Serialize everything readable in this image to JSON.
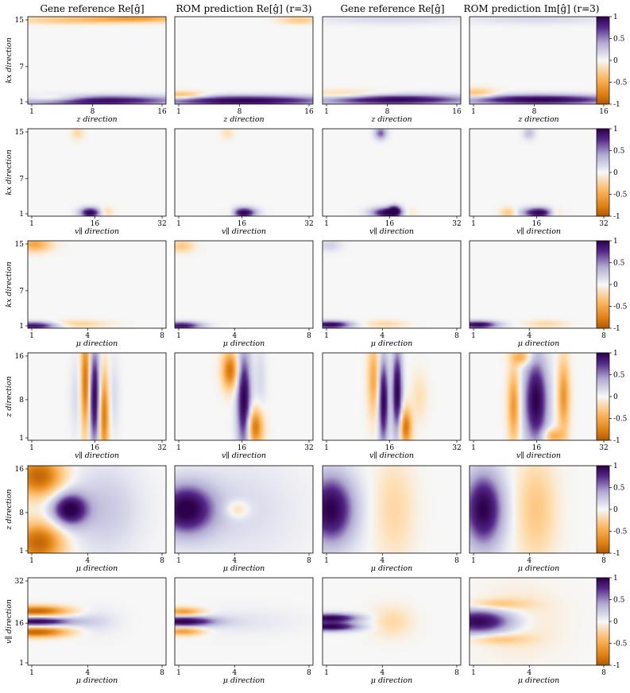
{
  "columns": [
    "Gene reference Re[ĝ]",
    "ROM prediction Re[ĝ] (r=3)",
    "Gene reference Re[ĝ]",
    "ROM prediction Im[ĝ] (r=3)"
  ],
  "colorbar": {
    "ticks": [
      "1",
      "0.5",
      "0",
      "-0.5",
      "-1"
    ],
    "colormap": "PuOr",
    "min": -1,
    "max": 1
  },
  "colors": {
    "positive": "#3b0b70",
    "neutral": "#f7f7f7",
    "negative": "#b35806"
  },
  "chart_data": {
    "type": "heatmap",
    "vmin": -1,
    "vmax": 1,
    "rows": [
      {
        "xlabel": "z direction",
        "ylabel": "kx direction",
        "xticks": [
          "1",
          "8",
          "16"
        ],
        "yticks": [
          "15",
          "7",
          "1"
        ],
        "xrange": [
          1,
          16
        ],
        "yrange": [
          1,
          15
        ],
        "panels": [
          {
            "blobs": [
              [
                0.45,
                0.96,
                0.45,
                0.04,
                1.0
              ],
              [
                0.18,
                0.94,
                0.18,
                0.03,
                -0.6
              ],
              [
                0.8,
                0.02,
                0.25,
                0.03,
                -0.5
              ],
              [
                0.3,
                0.04,
                0.3,
                0.03,
                -0.3
              ]
            ]
          },
          {
            "blobs": [
              [
                0.5,
                0.96,
                0.45,
                0.04,
                1.0
              ],
              [
                0.05,
                0.9,
                0.12,
                0.03,
                -0.5
              ],
              [
                0.9,
                0.04,
                0.1,
                0.03,
                -0.3
              ]
            ]
          },
          {
            "blobs": [
              [
                0.5,
                0.95,
                0.4,
                0.04,
                1.0
              ],
              [
                0.15,
                0.9,
                0.2,
                0.04,
                -0.3
              ],
              [
                0.5,
                0.03,
                0.4,
                0.04,
                0.15
              ]
            ]
          },
          {
            "blobs": [
              [
                0.5,
                0.95,
                0.4,
                0.04,
                1.0
              ],
              [
                0.05,
                0.88,
                0.1,
                0.04,
                -0.4
              ],
              [
                0.5,
                0.03,
                0.4,
                0.04,
                0.15
              ]
            ]
          }
        ]
      },
      {
        "xlabel": "v∥ direction",
        "ylabel": "kx direction",
        "xticks": [
          "1",
          "16",
          "32"
        ],
        "yticks": [
          "15",
          "7",
          "1"
        ],
        "xrange": [
          1,
          32
        ],
        "yrange": [
          1,
          15
        ],
        "panels": [
          {
            "blobs": [
              [
                0.45,
                0.96,
                0.05,
                0.04,
                1.0
              ],
              [
                0.36,
                0.05,
                0.03,
                0.05,
                -0.2
              ],
              [
                0.57,
                0.95,
                0.03,
                0.04,
                -0.2
              ]
            ]
          },
          {
            "blobs": [
              [
                0.5,
                0.96,
                0.06,
                0.04,
                1.0
              ],
              [
                0.4,
                0.96,
                0.03,
                0.04,
                -0.2
              ],
              [
                0.38,
                0.05,
                0.03,
                0.05,
                -0.15
              ]
            ]
          },
          {
            "blobs": [
              [
                0.47,
                0.96,
                0.08,
                0.04,
                1.0
              ],
              [
                0.52,
                0.93,
                0.03,
                0.04,
                0.7
              ],
              [
                0.42,
                0.05,
                0.03,
                0.05,
                0.6
              ],
              [
                0.62,
                0.96,
                0.04,
                0.04,
                -0.2
              ]
            ]
          },
          {
            "blobs": [
              [
                0.5,
                0.96,
                0.08,
                0.04,
                1.0
              ],
              [
                0.28,
                0.96,
                0.04,
                0.04,
                -0.3
              ],
              [
                0.62,
                0.96,
                0.04,
                0.04,
                -0.3
              ],
              [
                0.43,
                0.05,
                0.03,
                0.05,
                0.3
              ]
            ]
          }
        ]
      },
      {
        "xlabel": "μ direction",
        "ylabel": "kx direction",
        "xticks": [
          "1",
          "4",
          "8"
        ],
        "yticks": [
          "15",
          "7",
          "1"
        ],
        "xrange": [
          1,
          8
        ],
        "yrange": [
          1,
          15
        ],
        "panels": [
          {
            "blobs": [
              [
                0.05,
                0.97,
                0.12,
                0.03,
                0.9
              ],
              [
                0.05,
                0.04,
                0.08,
                0.06,
                -0.5
              ],
              [
                0.35,
                0.95,
                0.15,
                0.03,
                -0.25
              ]
            ]
          },
          {
            "blobs": [
              [
                0.05,
                0.97,
                0.1,
                0.03,
                0.9
              ],
              [
                0.05,
                0.06,
                0.06,
                0.05,
                -0.3
              ]
            ]
          },
          {
            "blobs": [
              [
                0.06,
                0.96,
                0.1,
                0.03,
                1.0
              ],
              [
                0.45,
                0.95,
                0.1,
                0.03,
                -0.2
              ],
              [
                0.05,
                0.05,
                0.06,
                0.05,
                0.2
              ]
            ]
          },
          {
            "blobs": [
              [
                0.06,
                0.96,
                0.1,
                0.03,
                1.0
              ],
              [
                0.55,
                0.95,
                0.1,
                0.03,
                -0.2
              ]
            ]
          }
        ]
      },
      {
        "xlabel": "v∥ direction",
        "ylabel": "z direction",
        "xticks": [
          "1",
          "16",
          "32"
        ],
        "yticks": [
          "16",
          "8",
          "1"
        ],
        "xrange": [
          1,
          32
        ],
        "yrange": [
          1,
          16
        ],
        "panels": [
          {
            "blobs": [
              [
                0.48,
                0.5,
                0.03,
                0.4,
                1.0
              ],
              [
                0.42,
                0.35,
                0.025,
                0.4,
                -0.9
              ],
              [
                0.55,
                0.7,
                0.025,
                0.35,
                -0.8
              ],
              [
                0.35,
                0.5,
                0.03,
                0.3,
                0.15
              ],
              [
                0.62,
                0.5,
                0.03,
                0.3,
                0.15
              ]
            ]
          },
          {
            "blobs": [
              [
                0.5,
                0.55,
                0.035,
                0.4,
                1.0
              ],
              [
                0.4,
                0.2,
                0.04,
                0.15,
                -0.8
              ],
              [
                0.58,
                0.85,
                0.04,
                0.15,
                -0.8
              ],
              [
                0.62,
                0.3,
                0.03,
                0.3,
                0.15
              ]
            ]
          },
          {
            "blobs": [
              [
                0.44,
                0.55,
                0.025,
                0.35,
                1.0
              ],
              [
                0.54,
                0.45,
                0.025,
                0.35,
                1.0
              ],
              [
                0.37,
                0.3,
                0.03,
                0.3,
                -0.5
              ],
              [
                0.6,
                0.85,
                0.03,
                0.15,
                -0.8
              ],
              [
                0.7,
                0.5,
                0.04,
                0.2,
                -0.15
              ]
            ]
          },
          {
            "blobs": [
              [
                0.48,
                0.55,
                0.06,
                0.35,
                1.0
              ],
              [
                0.32,
                0.6,
                0.03,
                0.3,
                -0.6
              ],
              [
                0.68,
                0.5,
                0.03,
                0.3,
                -0.6
              ],
              [
                0.6,
                0.95,
                0.05,
                0.06,
                -0.5
              ],
              [
                0.38,
                0.05,
                0.05,
                0.06,
                -0.5
              ]
            ]
          }
        ]
      },
      {
        "xlabel": "μ direction",
        "ylabel": "z direction",
        "xticks": [
          "1",
          "4",
          "8"
        ],
        "yticks": [
          "16",
          "8",
          "1"
        ],
        "xrange": [
          1,
          8
        ],
        "yrange": [
          1,
          16
        ],
        "panels": [
          {
            "blobs": [
              [
                0.3,
                0.5,
                0.09,
                0.13,
                1.0
              ],
              [
                0.08,
                0.12,
                0.12,
                0.16,
                -0.9
              ],
              [
                0.08,
                0.88,
                0.12,
                0.16,
                -0.9
              ],
              [
                0.55,
                0.5,
                0.18,
                0.35,
                0.25
              ]
            ]
          },
          {
            "blobs": [
              [
                0.08,
                0.5,
                0.14,
                0.2,
                1.0
              ],
              [
                0.45,
                0.5,
                0.3,
                0.4,
                0.15
              ],
              [
                0.45,
                0.5,
                0.06,
                0.07,
                -0.3
              ]
            ]
          },
          {
            "blobs": [
              [
                0.06,
                0.5,
                0.12,
                0.28,
                1.0
              ],
              [
                0.52,
                0.5,
                0.1,
                0.4,
                -0.2
              ]
            ]
          },
          {
            "blobs": [
              [
                0.1,
                0.5,
                0.1,
                0.3,
                1.0
              ],
              [
                0.48,
                0.5,
                0.1,
                0.4,
                -0.3
              ]
            ]
          }
        ]
      },
      {
        "xlabel": "μ direction",
        "ylabel": "v∥ direction",
        "xticks": [
          "1",
          "4",
          "8"
        ],
        "yticks": [
          "32",
          "16",
          "1"
        ],
        "xrange": [
          1,
          8
        ],
        "yrange": [
          1,
          32
        ],
        "panels": [
          {
            "blobs": [
              [
                0.06,
                0.5,
                0.18,
                0.035,
                1.0
              ],
              [
                0.06,
                0.38,
                0.16,
                0.04,
                -0.9
              ],
              [
                0.06,
                0.62,
                0.16,
                0.04,
                -0.9
              ],
              [
                0.48,
                0.5,
                0.12,
                0.1,
                0.15
              ]
            ]
          },
          {
            "blobs": [
              [
                0.06,
                0.5,
                0.16,
                0.04,
                1.0
              ],
              [
                0.06,
                0.39,
                0.1,
                0.035,
                -0.6
              ],
              [
                0.06,
                0.61,
                0.1,
                0.035,
                -0.6
              ],
              [
                0.45,
                0.5,
                0.3,
                0.1,
                0.1
              ]
            ]
          },
          {
            "blobs": [
              [
                0.06,
                0.46,
                0.14,
                0.035,
                1.0
              ],
              [
                0.06,
                0.56,
                0.14,
                0.035,
                1.0
              ],
              [
                0.5,
                0.5,
                0.1,
                0.12,
                -0.2
              ]
            ]
          },
          {
            "blobs": [
              [
                0.08,
                0.5,
                0.18,
                0.1,
                1.0
              ],
              [
                0.35,
                0.5,
                0.2,
                0.25,
                -0.15
              ],
              [
                0.2,
                0.3,
                0.15,
                0.04,
                -0.3
              ],
              [
                0.2,
                0.7,
                0.15,
                0.04,
                -0.3
              ]
            ]
          }
        ]
      }
    ]
  }
}
